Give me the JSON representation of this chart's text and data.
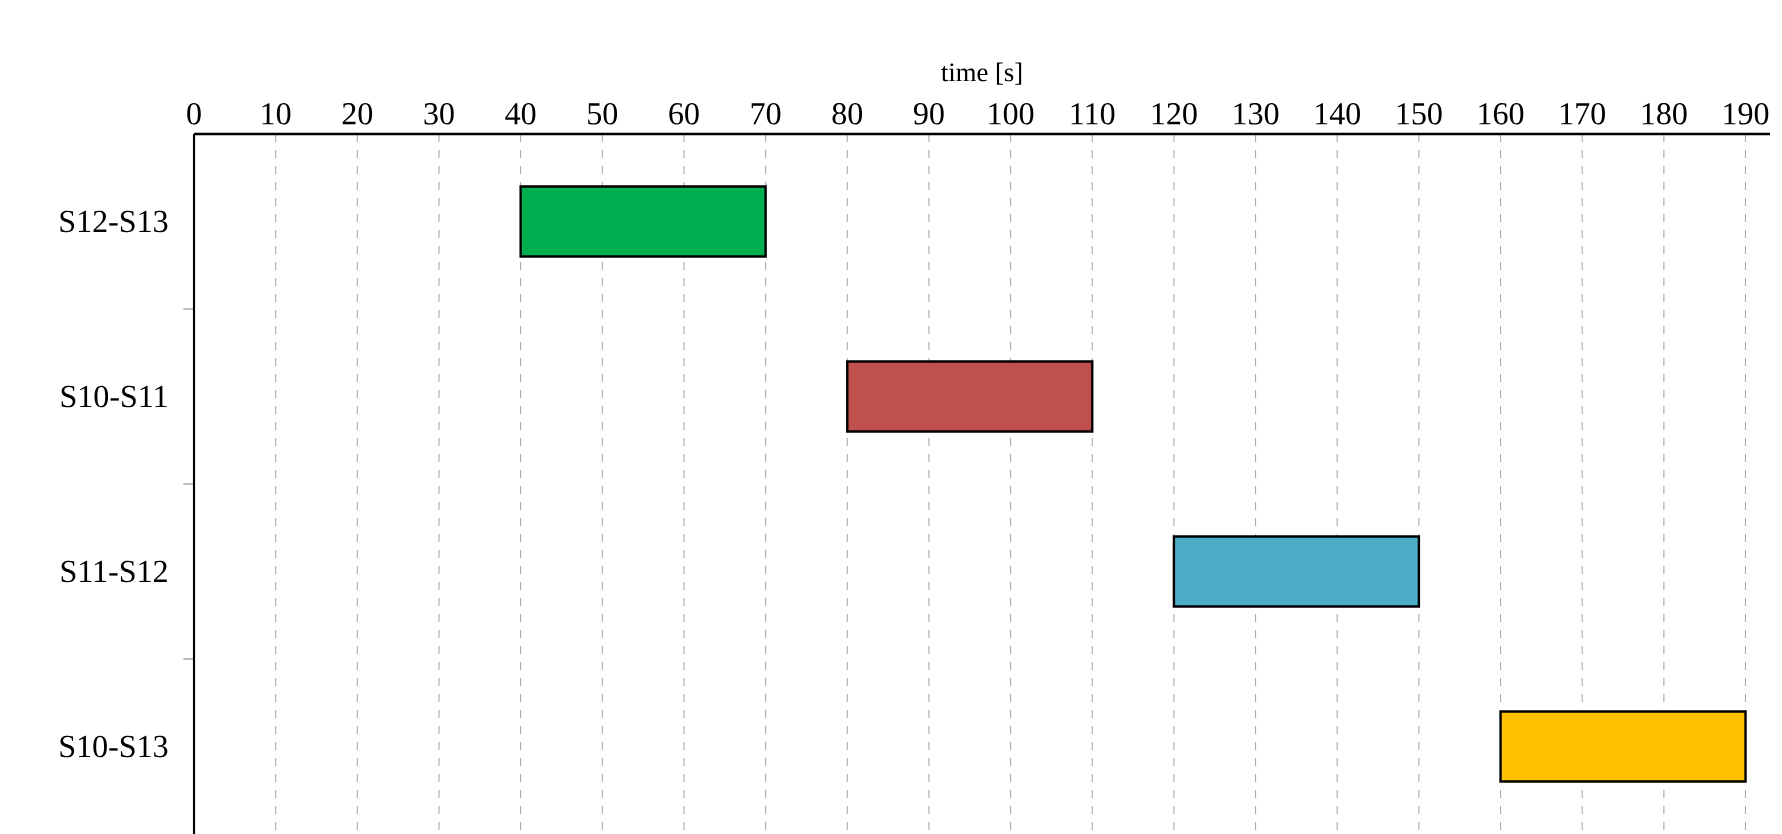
{
  "chart_data": {
    "type": "bar",
    "orientation": "horizontal",
    "xlabel": "time [s]",
    "categories": [
      "S12-S13",
      "S10-S11",
      "S11-S12",
      "S10-S13"
    ],
    "base": [
      40,
      80,
      120,
      160
    ],
    "values": [
      30,
      30,
      30,
      30
    ],
    "colors": [
      "#00b050",
      "#c0504d",
      "#4bacc6",
      "#ffc000"
    ],
    "xlim": [
      0,
      193
    ],
    "xticks": [
      0,
      10,
      20,
      30,
      40,
      50,
      60,
      70,
      80,
      90,
      100,
      110,
      120,
      130,
      140,
      150,
      160,
      170,
      180,
      190
    ],
    "grid": "x"
  }
}
